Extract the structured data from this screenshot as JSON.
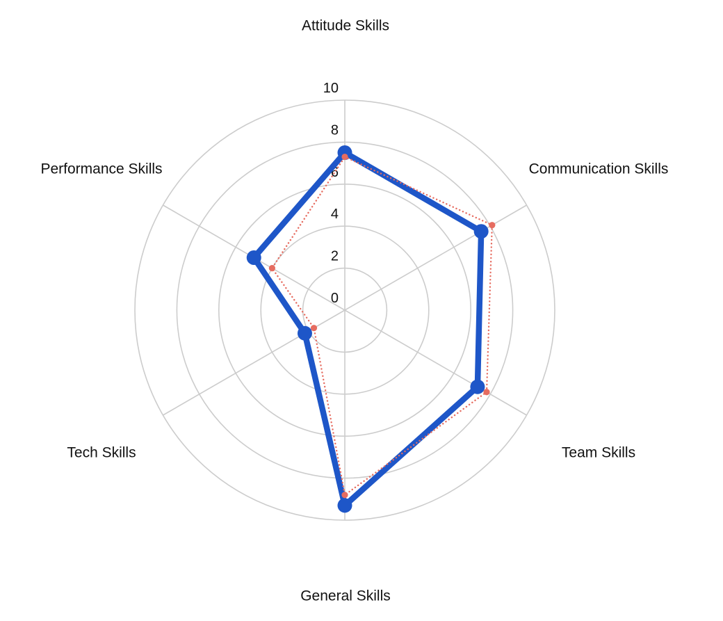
{
  "chart_data": {
    "type": "radar",
    "title": "",
    "axes": [
      "Attitude Skills",
      "Communication Skills",
      "Team Skills",
      "General Skills",
      "Tech Skills",
      "Performance Skills"
    ],
    "axes_order": "clockwise-from-top",
    "radial_ticks": [
      0,
      2,
      4,
      6,
      8,
      10
    ],
    "range": [
      0,
      10
    ],
    "grid": true,
    "legend": "none",
    "series": [
      {
        "name": "solid-blue-series",
        "values": [
          7.5,
          7.5,
          7.3,
          9.3,
          2.2,
          5.0
        ],
        "color": "#1e56c8",
        "style": "solid",
        "line_width": 8.5,
        "point_radius": 10.5
      },
      {
        "name": "dotted-red-series",
        "values": [
          7.3,
          8.1,
          7.8,
          8.8,
          1.7,
          4.0
        ],
        "color": "#e66c60",
        "style": "dotted",
        "line_width": 2.4,
        "point_radius": 4.6
      }
    ],
    "colors": {
      "grid": "#cccccc",
      "tick_label": "#111111",
      "axis_label": "#111111",
      "background": "#ffffff"
    }
  }
}
